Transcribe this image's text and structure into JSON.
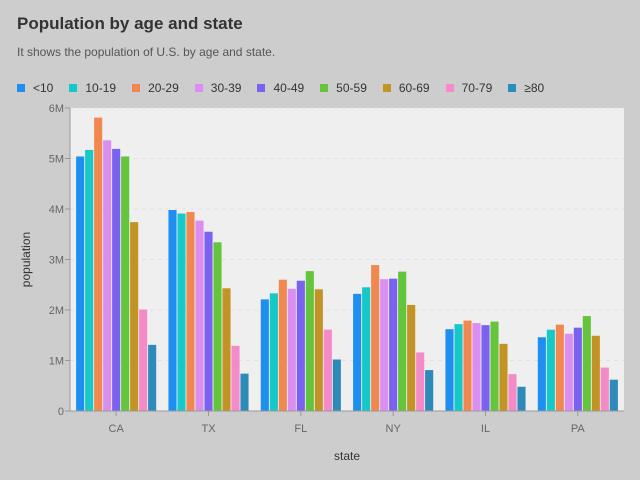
{
  "title": "Population by age and state",
  "subtitle": "It shows the population of U.S. by age and state.",
  "chart_data": {
    "type": "bar",
    "xlabel": "state",
    "ylabel": "population",
    "categories": [
      "CA",
      "TX",
      "FL",
      "NY",
      "IL",
      "PA"
    ],
    "ylim": [
      0,
      6000000
    ],
    "yticks": [
      0,
      1000000,
      2000000,
      3000000,
      4000000,
      5000000,
      6000000
    ],
    "ytick_labels": [
      "0",
      "1M",
      "2M",
      "3M",
      "4M",
      "5M",
      "6M"
    ],
    "grid": true,
    "legend_position": "top-left",
    "series": [
      {
        "name": "<10",
        "color": "#1f8ef1",
        "values": [
          5040000,
          3980000,
          2210000,
          2320000,
          1620000,
          1460000
        ]
      },
      {
        "name": "10-19",
        "color": "#17c8c8",
        "values": [
          5170000,
          3910000,
          2330000,
          2450000,
          1720000,
          1610000
        ]
      },
      {
        "name": "20-29",
        "color": "#f0884f",
        "values": [
          5810000,
          3940000,
          2600000,
          2890000,
          1790000,
          1710000
        ]
      },
      {
        "name": "30-39",
        "color": "#d98ef0",
        "values": [
          5360000,
          3770000,
          2420000,
          2610000,
          1740000,
          1530000
        ]
      },
      {
        "name": "40-49",
        "color": "#7b61f0",
        "values": [
          5190000,
          3550000,
          2580000,
          2620000,
          1700000,
          1650000
        ]
      },
      {
        "name": "50-59",
        "color": "#64c43c",
        "values": [
          5040000,
          3340000,
          2770000,
          2760000,
          1770000,
          1880000
        ]
      },
      {
        "name": "60-69",
        "color": "#c29426",
        "values": [
          3740000,
          2430000,
          2410000,
          2100000,
          1330000,
          1490000
        ]
      },
      {
        "name": "70-79",
        "color": "#f58ac8",
        "values": [
          2010000,
          1290000,
          1610000,
          1160000,
          730000,
          860000
        ]
      },
      {
        "name": "≥80",
        "color": "#2e8ab8",
        "values": [
          1310000,
          740000,
          1020000,
          810000,
          480000,
          620000
        ]
      }
    ]
  }
}
